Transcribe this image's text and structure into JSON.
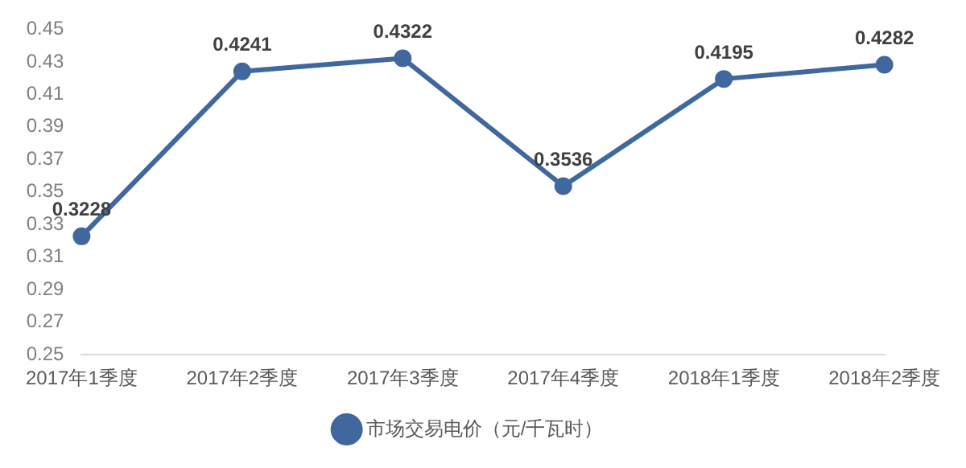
{
  "chart_data": {
    "type": "line",
    "categories": [
      "2017年1季度",
      "2017年2季度",
      "2017年3季度",
      "2017年4季度",
      "2018年1季度",
      "2018年2季度"
    ],
    "series": [
      {
        "name": "市场交易电价（元/千瓦时）",
        "color": "#41679f",
        "values": [
          0.3228,
          0.4241,
          0.4322,
          0.3536,
          0.4195,
          0.4282
        ]
      }
    ],
    "ylim": [
      0.25,
      0.45
    ],
    "yticks": [
      0.25,
      0.27,
      0.29,
      0.31,
      0.33,
      0.35,
      0.37,
      0.39,
      0.41,
      0.43,
      0.45
    ],
    "grid": false,
    "legend": "bottom",
    "marker": "circle",
    "line_style": "solid",
    "data_labels": true
  }
}
